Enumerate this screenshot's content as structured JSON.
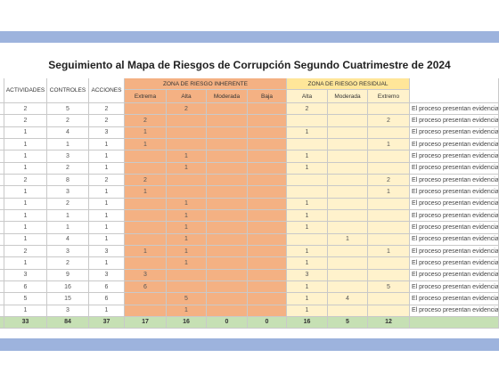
{
  "title": "Seguimiento al Mapa de Riesgos de Corrupción Segundo Cuatrimestre de 2024",
  "headers": {
    "activities": "ACTIVIDADES",
    "controls": "CONTROLES",
    "actions": "ACCIONES",
    "inherent": "ZONA DE RIESGO INHERENTE",
    "inherent_levels": [
      "Extrema",
      "Alta",
      "Moderada",
      "Baja"
    ],
    "residual": "ZONA DE RIESGO RESIDUAL",
    "residual_levels": [
      "Alta",
      "Moderada",
      "Extremo"
    ]
  },
  "rows": [
    {
      "cells": [
        2,
        5,
        2,
        null,
        2,
        null,
        null,
        2,
        null,
        null
      ],
      "note": "El proceso presentan evidencia"
    },
    {
      "cells": [
        2,
        2,
        2,
        2,
        null,
        null,
        null,
        null,
        null,
        2
      ],
      "note": "El proceso presentan evidencia"
    },
    {
      "cells": [
        1,
        4,
        3,
        1,
        null,
        null,
        null,
        1,
        null,
        null
      ],
      "note": "El proceso presentan evidencia"
    },
    {
      "cells": [
        1,
        1,
        1,
        1,
        null,
        null,
        null,
        null,
        null,
        1
      ],
      "note": "El proceso presentan evidencia"
    },
    {
      "cells": [
        1,
        3,
        1,
        null,
        1,
        null,
        null,
        1,
        null,
        null
      ],
      "note": "El proceso presentan evidencia"
    },
    {
      "cells": [
        1,
        2,
        1,
        null,
        1,
        null,
        null,
        1,
        null,
        null
      ],
      "note": "El proceso presentan evidencia"
    },
    {
      "cells": [
        2,
        8,
        2,
        2,
        null,
        null,
        null,
        null,
        null,
        2
      ],
      "note": "El proceso presentan evidencia"
    },
    {
      "cells": [
        1,
        3,
        1,
        1,
        null,
        null,
        null,
        null,
        null,
        1
      ],
      "note": "El proceso presentan evidencia"
    },
    {
      "cells": [
        1,
        2,
        1,
        null,
        1,
        null,
        null,
        1,
        null,
        null
      ],
      "note": "El proceso presentan evidencia"
    },
    {
      "cells": [
        1,
        1,
        1,
        null,
        1,
        null,
        null,
        1,
        null,
        null
      ],
      "note": "El proceso presentan evidencia"
    },
    {
      "cells": [
        1,
        1,
        1,
        null,
        1,
        null,
        null,
        1,
        null,
        null
      ],
      "note": "El proceso presentan evidencia"
    },
    {
      "cells": [
        1,
        4,
        1,
        null,
        1,
        null,
        null,
        null,
        1,
        null
      ],
      "note": "El proceso presentan evidencia"
    },
    {
      "cells": [
        2,
        3,
        3,
        1,
        1,
        null,
        null,
        1,
        null,
        1
      ],
      "note": "El proceso presentan evidencia"
    },
    {
      "cells": [
        1,
        2,
        1,
        null,
        1,
        null,
        null,
        1,
        null,
        null
      ],
      "note": "El proceso presentan evidencia"
    },
    {
      "cells": [
        3,
        9,
        3,
        3,
        null,
        null,
        null,
        3,
        null,
        null
      ],
      "note": "El proceso presentan evidencia"
    },
    {
      "cells": [
        6,
        16,
        6,
        6,
        null,
        null,
        null,
        1,
        null,
        5
      ],
      "note": "El proceso presentan evidencia"
    },
    {
      "cells": [
        5,
        15,
        6,
        null,
        5,
        null,
        null,
        1,
        4,
        null
      ],
      "note": "El proceso presentan evidencia"
    },
    {
      "cells": [
        1,
        3,
        1,
        null,
        1,
        null,
        null,
        1,
        null,
        null
      ],
      "note": "El proceso presentan evidencia"
    }
  ],
  "totals": [
    33,
    84,
    37,
    17,
    16,
    0,
    0,
    16,
    5,
    12
  ]
}
